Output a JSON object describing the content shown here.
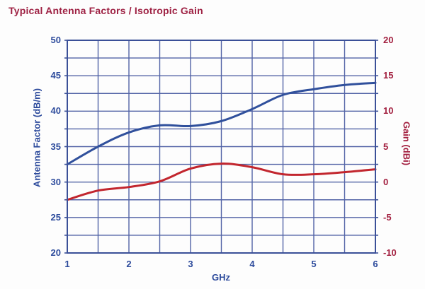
{
  "title": "Typical Antenna Factors / Isotropic Gain",
  "colors": {
    "title": "#9e2143",
    "axis_blue_text": "#2d4b9c",
    "axis_red_text": "#a21f3f",
    "grid": "#5263a6",
    "frame": "#3b5098",
    "curve_blue": "#30509c",
    "curve_red": "#c2262e",
    "background": "#fdfdfd"
  },
  "axes": {
    "x_ticks": [
      "1",
      "2",
      "3",
      "4",
      "5",
      "6"
    ],
    "y_left_ticks": [
      "50",
      "45",
      "40",
      "35",
      "30",
      "25",
      "20"
    ],
    "y_right_ticks": [
      "20",
      "15",
      "10",
      "5",
      "0",
      "-5",
      "-10"
    ]
  },
  "chart_data": {
    "type": "line",
    "title": "Typical Antenna Factors / Isotropic Gain",
    "xlabel": "GHz",
    "ylabel_left": "Antenna Factor (dB/m)",
    "ylabel_right": "Gain (dBi)",
    "x": [
      1,
      1.5,
      2,
      2.5,
      3,
      3.5,
      4,
      4.5,
      5,
      5.5,
      6
    ],
    "series": [
      {
        "name": "Antenna Factor (dB/m)",
        "axis": "left",
        "color": "#30509c",
        "values": [
          32.5,
          35.0,
          37.0,
          38.0,
          37.9,
          38.6,
          40.3,
          42.3,
          43.1,
          43.7,
          44.0
        ]
      },
      {
        "name": "Isotropic Gain (dBi)",
        "axis": "right",
        "color": "#c2262e",
        "values": [
          -2.5,
          -1.2,
          -0.7,
          0.1,
          1.9,
          2.6,
          2.1,
          1.1,
          1.1,
          1.4,
          1.8
        ]
      }
    ],
    "xlim": [
      1,
      6
    ],
    "ylim_left": [
      20,
      50
    ],
    "ylim_right": [
      -10,
      20
    ],
    "x_grid_step": 0.5,
    "y_grid_step": 2.5,
    "grid": true,
    "legend": "none"
  }
}
